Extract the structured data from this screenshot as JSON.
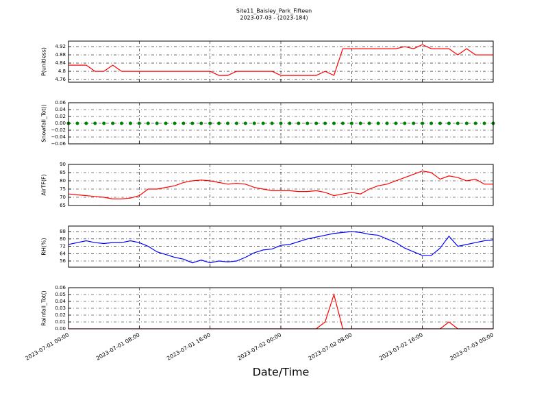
{
  "title": "Site11_Baisley_Park_Fifteen",
  "subtitle": "2023-07-03 - (2023-184)",
  "xlabel": "Date/Time",
  "chart_data": [
    {
      "type": "line",
      "ylabel": "P(unitless)",
      "color": "#ff0000",
      "grid": true,
      "x": [
        "2023-07-01 00:00",
        "2023-07-01 01:00",
        "2023-07-01 02:00",
        "2023-07-01 03:00",
        "2023-07-01 04:00",
        "2023-07-01 05:00",
        "2023-07-01 06:00",
        "2023-07-01 07:00",
        "2023-07-01 08:00",
        "2023-07-01 09:00",
        "2023-07-01 10:00",
        "2023-07-01 11:00",
        "2023-07-01 12:00",
        "2023-07-01 13:00",
        "2023-07-01 14:00",
        "2023-07-01 15:00",
        "2023-07-01 16:00",
        "2023-07-01 17:00",
        "2023-07-01 18:00",
        "2023-07-01 19:00",
        "2023-07-01 20:00",
        "2023-07-01 21:00",
        "2023-07-01 22:00",
        "2023-07-01 23:00",
        "2023-07-02 00:00",
        "2023-07-02 01:00",
        "2023-07-02 02:00",
        "2023-07-02 03:00",
        "2023-07-02 04:00",
        "2023-07-02 05:00",
        "2023-07-02 06:00",
        "2023-07-02 07:00",
        "2023-07-02 08:00",
        "2023-07-02 09:00",
        "2023-07-02 10:00",
        "2023-07-02 11:00",
        "2023-07-02 12:00",
        "2023-07-02 13:00",
        "2023-07-02 14:00",
        "2023-07-02 15:00",
        "2023-07-02 16:00",
        "2023-07-02 17:00",
        "2023-07-02 18:00",
        "2023-07-02 19:00",
        "2023-07-02 20:00",
        "2023-07-02 21:00",
        "2023-07-02 22:00",
        "2023-07-02 23:00",
        "2023-07-03 00:00"
      ],
      "values": [
        4.83,
        4.83,
        4.83,
        4.8,
        4.8,
        4.83,
        4.8,
        4.8,
        4.8,
        4.8,
        4.8,
        4.8,
        4.8,
        4.8,
        4.8,
        4.8,
        4.8,
        4.78,
        4.78,
        4.8,
        4.8,
        4.8,
        4.8,
        4.8,
        4.78,
        4.78,
        4.78,
        4.78,
        4.78,
        4.8,
        4.78,
        4.91,
        4.91,
        4.91,
        4.91,
        4.91,
        4.91,
        4.91,
        4.92,
        4.91,
        4.93,
        4.91,
        4.91,
        4.91,
        4.88,
        4.91,
        4.88,
        4.88,
        4.88
      ],
      "xlim": [
        "2023-07-01 00:00",
        "2023-07-03 00:00"
      ],
      "xticks": [
        "2023-07-01 00:00",
        "2023-07-01 08:00",
        "2023-07-01 16:00",
        "2023-07-02 00:00",
        "2023-07-02 08:00",
        "2023-07-02 16:00",
        "2023-07-03 00:00"
      ],
      "ylim": [
        4.747,
        4.947
      ],
      "yticks": [
        4.76,
        4.8,
        4.84,
        4.88,
        4.92
      ]
    },
    {
      "type": "scatter",
      "ylabel": "Snowfall_Tot()",
      "color": "#008000",
      "grid": true,
      "x": [
        "2023-07-01 00:00",
        "2023-07-01 01:00",
        "2023-07-01 02:00",
        "2023-07-01 03:00",
        "2023-07-01 04:00",
        "2023-07-01 05:00",
        "2023-07-01 06:00",
        "2023-07-01 07:00",
        "2023-07-01 08:00",
        "2023-07-01 09:00",
        "2023-07-01 10:00",
        "2023-07-01 11:00",
        "2023-07-01 12:00",
        "2023-07-01 13:00",
        "2023-07-01 14:00",
        "2023-07-01 15:00",
        "2023-07-01 16:00",
        "2023-07-01 17:00",
        "2023-07-01 18:00",
        "2023-07-01 19:00",
        "2023-07-01 20:00",
        "2023-07-01 21:00",
        "2023-07-01 22:00",
        "2023-07-01 23:00",
        "2023-07-02 00:00",
        "2023-07-02 01:00",
        "2023-07-02 02:00",
        "2023-07-02 03:00",
        "2023-07-02 04:00",
        "2023-07-02 05:00",
        "2023-07-02 06:00",
        "2023-07-02 07:00",
        "2023-07-02 08:00",
        "2023-07-02 09:00",
        "2023-07-02 10:00",
        "2023-07-02 11:00",
        "2023-07-02 12:00",
        "2023-07-02 13:00",
        "2023-07-02 14:00",
        "2023-07-02 15:00",
        "2023-07-02 16:00",
        "2023-07-02 17:00",
        "2023-07-02 18:00",
        "2023-07-02 19:00",
        "2023-07-02 20:00",
        "2023-07-02 21:00",
        "2023-07-02 22:00",
        "2023-07-02 23:00",
        "2023-07-03 00:00"
      ],
      "values": [
        0,
        0,
        0,
        0,
        0,
        0,
        0,
        0,
        0,
        0,
        0,
        0,
        0,
        0,
        0,
        0,
        0,
        0,
        0,
        0,
        0,
        0,
        0,
        0,
        0,
        0,
        0,
        0,
        0,
        0,
        0,
        0,
        0,
        0,
        0,
        0,
        0,
        0,
        0,
        0,
        0,
        0,
        0,
        0,
        0,
        0,
        0,
        0,
        0
      ],
      "xlim": [
        "2023-07-01 00:00",
        "2023-07-03 00:00"
      ],
      "xticks": [
        "2023-07-01 00:00",
        "2023-07-01 08:00",
        "2023-07-01 16:00",
        "2023-07-02 00:00",
        "2023-07-02 08:00",
        "2023-07-02 16:00",
        "2023-07-03 00:00"
      ],
      "ylim": [
        -0.06,
        0.06
      ],
      "yticks": [
        {
          "value": -0.06,
          "label": "−0.06"
        },
        {
          "value": -0.04,
          "label": "−0.04"
        },
        {
          "value": -0.02,
          "label": "−0.02"
        },
        {
          "value": 0,
          "label": "0.00"
        },
        0.02,
        0.04,
        0.06
      ]
    },
    {
      "type": "line",
      "ylabel": "AirTF(F)",
      "color": "#ff0000",
      "grid": true,
      "x": [
        "2023-07-01 00:00",
        "2023-07-01 01:00",
        "2023-07-01 02:00",
        "2023-07-01 03:00",
        "2023-07-01 04:00",
        "2023-07-01 05:00",
        "2023-07-01 06:00",
        "2023-07-01 07:00",
        "2023-07-01 08:00",
        "2023-07-01 09:00",
        "2023-07-01 10:00",
        "2023-07-01 11:00",
        "2023-07-01 12:00",
        "2023-07-01 13:00",
        "2023-07-01 14:00",
        "2023-07-01 15:00",
        "2023-07-01 16:00",
        "2023-07-01 17:00",
        "2023-07-01 18:00",
        "2023-07-01 19:00",
        "2023-07-01 20:00",
        "2023-07-01 21:00",
        "2023-07-01 22:00",
        "2023-07-01 23:00",
        "2023-07-02 00:00",
        "2023-07-02 01:00",
        "2023-07-02 02:00",
        "2023-07-02 03:00",
        "2023-07-02 04:00",
        "2023-07-02 05:00",
        "2023-07-02 06:00",
        "2023-07-02 07:00",
        "2023-07-02 08:00",
        "2023-07-02 09:00",
        "2023-07-02 10:00",
        "2023-07-02 11:00",
        "2023-07-02 12:00",
        "2023-07-02 13:00",
        "2023-07-02 14:00",
        "2023-07-02 15:00",
        "2023-07-02 16:00",
        "2023-07-02 17:00",
        "2023-07-02 18:00",
        "2023-07-02 19:00",
        "2023-07-02 20:00",
        "2023-07-02 21:00",
        "2023-07-02 22:00",
        "2023-07-02 23:00",
        "2023-07-03 00:00"
      ],
      "values": [
        72,
        71.5,
        71,
        70.5,
        70,
        69,
        69,
        69.5,
        71,
        75,
        75,
        76,
        77,
        79,
        80,
        80.5,
        80,
        79,
        78,
        78.5,
        78,
        76,
        75,
        74,
        74,
        74,
        73.5,
        73.5,
        74,
        73,
        71,
        72,
        73,
        72,
        75,
        77,
        78,
        80,
        82,
        84,
        86,
        85,
        81,
        83,
        82,
        80,
        81,
        78,
        78
      ],
      "xlim": [
        "2023-07-01 00:00",
        "2023-07-03 00:00"
      ],
      "xticks": [
        "2023-07-01 00:00",
        "2023-07-01 08:00",
        "2023-07-01 16:00",
        "2023-07-02 00:00",
        "2023-07-02 08:00",
        "2023-07-02 16:00",
        "2023-07-03 00:00"
      ],
      "ylim": [
        65,
        90
      ],
      "yticks": [
        65,
        70,
        75,
        80,
        85,
        90
      ]
    },
    {
      "type": "line",
      "ylabel": "RH(%)",
      "color": "#0000ff",
      "grid": true,
      "x": [
        "2023-07-01 00:00",
        "2023-07-01 01:00",
        "2023-07-01 02:00",
        "2023-07-01 03:00",
        "2023-07-01 04:00",
        "2023-07-01 05:00",
        "2023-07-01 06:00",
        "2023-07-01 07:00",
        "2023-07-01 08:00",
        "2023-07-01 09:00",
        "2023-07-01 10:00",
        "2023-07-01 11:00",
        "2023-07-01 12:00",
        "2023-07-01 13:00",
        "2023-07-01 14:00",
        "2023-07-01 15:00",
        "2023-07-01 16:00",
        "2023-07-01 17:00",
        "2023-07-01 18:00",
        "2023-07-01 19:00",
        "2023-07-01 20:00",
        "2023-07-01 21:00",
        "2023-07-01 22:00",
        "2023-07-01 23:00",
        "2023-07-02 00:00",
        "2023-07-02 01:00",
        "2023-07-02 02:00",
        "2023-07-02 03:00",
        "2023-07-02 04:00",
        "2023-07-02 05:00",
        "2023-07-02 06:00",
        "2023-07-02 07:00",
        "2023-07-02 08:00",
        "2023-07-02 09:00",
        "2023-07-02 10:00",
        "2023-07-02 11:00",
        "2023-07-02 12:00",
        "2023-07-02 13:00",
        "2023-07-02 14:00",
        "2023-07-02 15:00",
        "2023-07-02 16:00",
        "2023-07-02 17:00",
        "2023-07-02 18:00",
        "2023-07-02 19:00",
        "2023-07-02 20:00",
        "2023-07-02 21:00",
        "2023-07-02 22:00",
        "2023-07-02 23:00",
        "2023-07-03 00:00"
      ],
      "values": [
        74,
        76,
        78,
        76,
        75,
        76,
        76,
        78,
        76,
        72,
        66,
        63,
        60,
        58,
        54,
        57,
        54,
        56,
        55,
        56,
        60,
        65,
        68,
        69,
        73,
        74,
        77,
        80,
        82,
        84,
        86,
        87,
        88,
        87,
        85,
        84,
        80,
        76,
        70,
        66,
        62,
        62,
        70,
        83,
        72,
        74,
        76,
        78,
        79
      ],
      "xlim": [
        "2023-07-01 00:00",
        "2023-07-03 00:00"
      ],
      "xticks": [
        "2023-07-01 00:00",
        "2023-07-01 08:00",
        "2023-07-01 16:00",
        "2023-07-02 00:00",
        "2023-07-02 08:00",
        "2023-07-02 16:00",
        "2023-07-03 00:00"
      ],
      "ylim": [
        49.3,
        94
      ],
      "yticks": [
        56,
        64,
        72,
        80,
        88
      ]
    },
    {
      "type": "line",
      "ylabel": "Rainfall_Tot()",
      "color": "#ff0000",
      "grid": true,
      "x": [
        "2023-07-01 00:00",
        "2023-07-01 01:00",
        "2023-07-01 02:00",
        "2023-07-01 03:00",
        "2023-07-01 04:00",
        "2023-07-01 05:00",
        "2023-07-01 06:00",
        "2023-07-01 07:00",
        "2023-07-01 08:00",
        "2023-07-01 09:00",
        "2023-07-01 10:00",
        "2023-07-01 11:00",
        "2023-07-01 12:00",
        "2023-07-01 13:00",
        "2023-07-01 14:00",
        "2023-07-01 15:00",
        "2023-07-01 16:00",
        "2023-07-01 17:00",
        "2023-07-01 18:00",
        "2023-07-01 19:00",
        "2023-07-01 20:00",
        "2023-07-01 21:00",
        "2023-07-01 22:00",
        "2023-07-01 23:00",
        "2023-07-02 00:00",
        "2023-07-02 01:00",
        "2023-07-02 02:00",
        "2023-07-02 03:00",
        "2023-07-02 04:00",
        "2023-07-02 05:00",
        "2023-07-02 06:00",
        "2023-07-02 07:00",
        "2023-07-02 08:00",
        "2023-07-02 09:00",
        "2023-07-02 10:00",
        "2023-07-02 11:00",
        "2023-07-02 12:00",
        "2023-07-02 13:00",
        "2023-07-02 14:00",
        "2023-07-02 15:00",
        "2023-07-02 16:00",
        "2023-07-02 17:00",
        "2023-07-02 18:00",
        "2023-07-02 19:00",
        "2023-07-02 20:00",
        "2023-07-02 21:00",
        "2023-07-02 22:00",
        "2023-07-02 23:00",
        "2023-07-03 00:00"
      ],
      "values": [
        0,
        0,
        0,
        0,
        0,
        0,
        0,
        0,
        0,
        0,
        0,
        0,
        0,
        0,
        0,
        0,
        0,
        0,
        0,
        0,
        0,
        0,
        0,
        0,
        0,
        0,
        0,
        0,
        0,
        0.01,
        0.05,
        0,
        0,
        0,
        0,
        0,
        0,
        0,
        0,
        0,
        0,
        0,
        0,
        0.01,
        0,
        0,
        0,
        0,
        0
      ],
      "xlim": [
        "2023-07-01 00:00",
        "2023-07-03 00:00"
      ],
      "xticks": [
        "2023-07-01 00:00",
        "2023-07-01 08:00",
        "2023-07-01 16:00",
        "2023-07-02 00:00",
        "2023-07-02 08:00",
        "2023-07-02 16:00",
        "2023-07-03 00:00"
      ],
      "ylim": [
        0,
        0.06
      ],
      "yticks": [
        {
          "value": 0,
          "label": "0.00"
        },
        0.01,
        0.02,
        0.03,
        0.04,
        0.05,
        0.06
      ]
    }
  ]
}
